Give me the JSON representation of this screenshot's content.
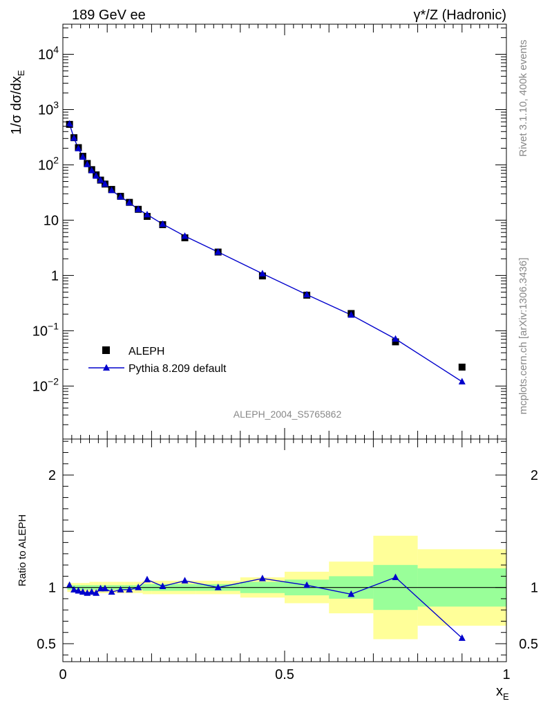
{
  "header": {
    "left_title": "189 GeV ee",
    "right_title_symbol": "γ*/Z",
    "right_title_text": " (Hadronic)"
  },
  "side": {
    "rivet": "Rivet 3.1.10,  400k events",
    "mcplots": "mcplots.cern.ch [arXiv:1306.3436]"
  },
  "analysis_label": "ALEPH_2004_S5765862",
  "colors": {
    "mc": "#0000cc",
    "band_stat": "#99ff99",
    "band_total": "#ffff99",
    "data": "#000000"
  },
  "chart_data": [
    {
      "type": "scatter",
      "panel": "main",
      "ylabel_prefix": "1/σ dσ/dx",
      "ylabel_sub": "E",
      "yscale": "log",
      "xlim": [
        0,
        1
      ],
      "ylim": [
        0.0011,
        35000
      ],
      "y_ticks": [
        {
          "value": 0.01,
          "base": "10",
          "exp": "−2"
        },
        {
          "value": 0.1,
          "base": "10",
          "exp": "−1"
        },
        {
          "value": 1,
          "base": "1",
          "exp": ""
        },
        {
          "value": 10,
          "base": "10",
          "exp": ""
        },
        {
          "value": 100,
          "base": "10",
          "exp": "2"
        },
        {
          "value": 1000,
          "base": "10",
          "exp": "3"
        },
        {
          "value": 10000,
          "base": "10",
          "exp": "4"
        }
      ],
      "legend": {
        "position": "bottom-left"
      },
      "series": [
        {
          "name": "ALEPH",
          "marker": "square",
          "x": [
            0.015,
            0.025,
            0.035,
            0.045,
            0.055,
            0.065,
            0.075,
            0.085,
            0.095,
            0.11,
            0.13,
            0.15,
            0.17,
            0.19,
            0.225,
            0.275,
            0.35,
            0.45,
            0.55,
            0.65,
            0.75,
            0.9
          ],
          "y": [
            540,
            310,
            205,
            143,
            106,
            82,
            66,
            53,
            45,
            36,
            27,
            21,
            15.7,
            11.7,
            8.3,
            4.8,
            2.65,
            0.98,
            0.44,
            0.205,
            0.063,
            0.022
          ]
        },
        {
          "name": "Pythia 8.209 default",
          "marker": "triangle",
          "x": [
            0.015,
            0.025,
            0.035,
            0.045,
            0.055,
            0.065,
            0.075,
            0.085,
            0.095,
            0.11,
            0.13,
            0.15,
            0.17,
            0.19,
            0.225,
            0.275,
            0.35,
            0.45,
            0.55,
            0.65,
            0.75,
            0.9
          ],
          "y": [
            550,
            305,
            198,
            139,
            102,
            79,
            63,
            53,
            45,
            34.5,
            26.5,
            20.7,
            15.7,
            12.6,
            8.5,
            5.15,
            2.65,
            1.08,
            0.45,
            0.193,
            0.071,
            0.012
          ]
        }
      ]
    },
    {
      "type": "line",
      "panel": "ratio",
      "ylabel": "Ratio to ALEPH",
      "xlabel_main": "x",
      "xlabel_sub": "E",
      "xlim": [
        0,
        1
      ],
      "ylim": [
        0.34,
        2.32
      ],
      "x_ticks": [
        {
          "value": 0,
          "label": "0"
        },
        {
          "value": 0.5,
          "label": "0.5"
        },
        {
          "value": 1,
          "label": "1"
        }
      ],
      "y_ticks": [
        {
          "value": 0.5,
          "label": "0.5"
        },
        {
          "value": 1,
          "label": "1"
        },
        {
          "value": 2,
          "label": "2"
        }
      ],
      "bands": [
        {
          "x0": 0.01,
          "x1": 0.02,
          "stat": 0.02,
          "total": 0.04
        },
        {
          "x0": 0.02,
          "x1": 0.03,
          "stat": 0.02,
          "total": 0.04
        },
        {
          "x0": 0.03,
          "x1": 0.04,
          "stat": 0.02,
          "total": 0.04
        },
        {
          "x0": 0.04,
          "x1": 0.05,
          "stat": 0.02,
          "total": 0.04
        },
        {
          "x0": 0.05,
          "x1": 0.06,
          "stat": 0.02,
          "total": 0.04
        },
        {
          "x0": 0.06,
          "x1": 0.07,
          "stat": 0.02,
          "total": 0.05
        },
        {
          "x0": 0.07,
          "x1": 0.08,
          "stat": 0.02,
          "total": 0.05
        },
        {
          "x0": 0.08,
          "x1": 0.09,
          "stat": 0.02,
          "total": 0.05
        },
        {
          "x0": 0.09,
          "x1": 0.1,
          "stat": 0.02,
          "total": 0.05
        },
        {
          "x0": 0.1,
          "x1": 0.12,
          "stat": 0.02,
          "total": 0.05
        },
        {
          "x0": 0.12,
          "x1": 0.14,
          "stat": 0.02,
          "total": 0.05
        },
        {
          "x0": 0.14,
          "x1": 0.16,
          "stat": 0.02,
          "total": 0.05
        },
        {
          "x0": 0.16,
          "x1": 0.18,
          "stat": 0.02,
          "total": 0.05
        },
        {
          "x0": 0.18,
          "x1": 0.2,
          "stat": 0.03,
          "total": 0.06
        },
        {
          "x0": 0.2,
          "x1": 0.25,
          "stat": 0.03,
          "total": 0.06
        },
        {
          "x0": 0.25,
          "x1": 0.3,
          "stat": 0.03,
          "total": 0.06
        },
        {
          "x0": 0.3,
          "x1": 0.4,
          "stat": 0.03,
          "total": 0.06
        },
        {
          "x0": 0.4,
          "x1": 0.5,
          "stat": 0.05,
          "total": 0.09
        },
        {
          "x0": 0.5,
          "x1": 0.6,
          "stat": 0.07,
          "total": 0.14
        },
        {
          "x0": 0.6,
          "x1": 0.7,
          "stat": 0.1,
          "total": 0.23
        },
        {
          "x0": 0.7,
          "x1": 0.8,
          "stat": 0.2,
          "total": 0.46
        },
        {
          "x0": 0.8,
          "x1": 1.0,
          "stat": 0.17,
          "total": 0.34
        }
      ],
      "series": [
        {
          "name": "Pythia 8.209 default",
          "x": [
            0.015,
            0.025,
            0.035,
            0.045,
            0.055,
            0.065,
            0.075,
            0.085,
            0.095,
            0.11,
            0.13,
            0.15,
            0.17,
            0.19,
            0.225,
            0.275,
            0.35,
            0.45,
            0.55,
            0.65,
            0.75,
            0.9
          ],
          "y": [
            1.02,
            0.98,
            0.97,
            0.96,
            0.95,
            0.96,
            0.95,
            0.99,
            0.99,
            0.96,
            0.98,
            0.98,
            1.0,
            1.07,
            1.01,
            1.06,
            1.0,
            1.08,
            1.02,
            0.94,
            1.09,
            0.55
          ]
        }
      ]
    }
  ]
}
